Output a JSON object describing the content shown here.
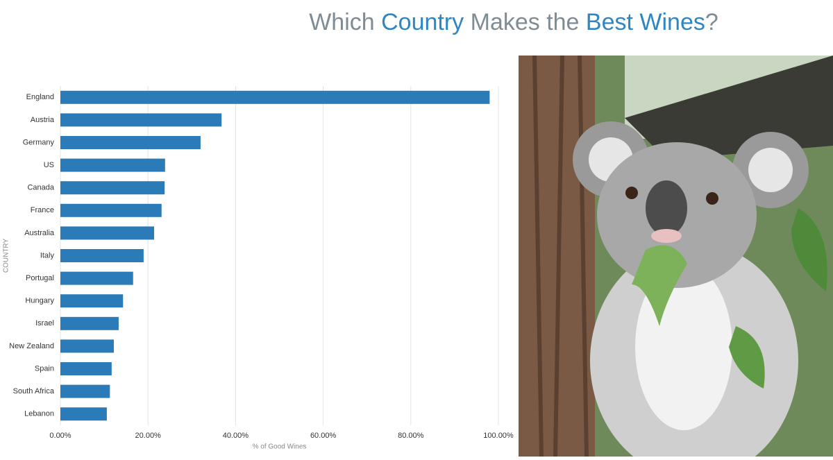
{
  "chart_data": {
    "type": "bar",
    "orientation": "horizontal",
    "title": [
      "Which ",
      "Country",
      " Makes the ",
      "Best Wines",
      "?"
    ],
    "title_colors": [
      "#7f8c94",
      "#2f86c3",
      "#7f8c94",
      "#2f86c3",
      "#7f8c94"
    ],
    "x_label": "% of Good Wines",
    "y_label": "COUNTRY",
    "categories": [
      "England",
      "Austria",
      "Germany",
      "US",
      "Canada",
      "France",
      "Australia",
      "Italy",
      "Portugal",
      "Hungary",
      "Israel",
      "New Zealand",
      "Spain",
      "South Africa",
      "Lebanon"
    ],
    "values": [
      98,
      36.8,
      32,
      23.9,
      23.8,
      23.1,
      21.4,
      19,
      16.6,
      14.3,
      13.3,
      12.2,
      11.7,
      11.3,
      10.6
    ],
    "color": "#2b7bb9",
    "xlim": [
      0,
      100
    ],
    "xticks": [
      {
        "value": 0,
        "label": "0.00%"
      },
      {
        "value": 20,
        "label": "20.00%"
      },
      {
        "value": 40,
        "label": "40.00%"
      },
      {
        "value": 60,
        "label": "60.00%"
      },
      {
        "value": 80,
        "label": "80.00%"
      },
      {
        "value": 100,
        "label": "100.00%"
      }
    ],
    "grid": true
  }
}
